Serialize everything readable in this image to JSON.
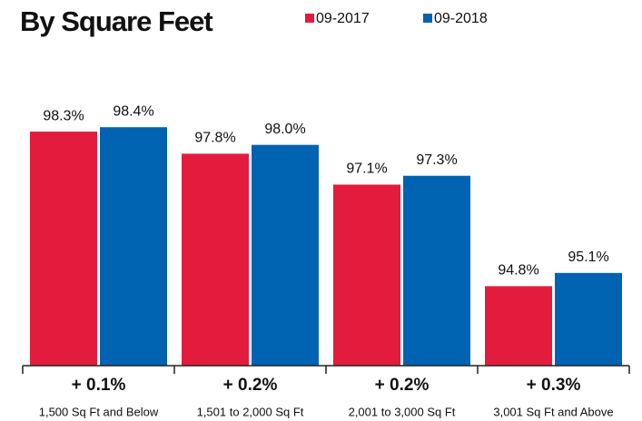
{
  "chart_data": {
    "type": "bar",
    "title": "By Square Feet",
    "categories": [
      "1,500 Sq Ft and Below",
      "1,501 to 2,000 Sq Ft",
      "2,001 to 3,000 Sq Ft",
      "3,001 Sq Ft and Above"
    ],
    "series": [
      {
        "name": "09-2017",
        "color": "#e31c3d",
        "values": [
          98.3,
          97.8,
          97.1,
          94.8
        ],
        "value_labels": [
          "98.3%",
          "97.8%",
          "97.1%",
          "94.8%"
        ]
      },
      {
        "name": "09-2018",
        "color": "#0063b1",
        "values": [
          98.4,
          98.0,
          97.3,
          95.1
        ],
        "value_labels": [
          "98.4%",
          "98.0%",
          "97.3%",
          "95.1%"
        ]
      }
    ],
    "annotations": [
      "+ 0.1%",
      "+ 0.2%",
      "+ 0.2%",
      "+ 0.3%"
    ],
    "ylim": [
      93,
      99
    ]
  }
}
